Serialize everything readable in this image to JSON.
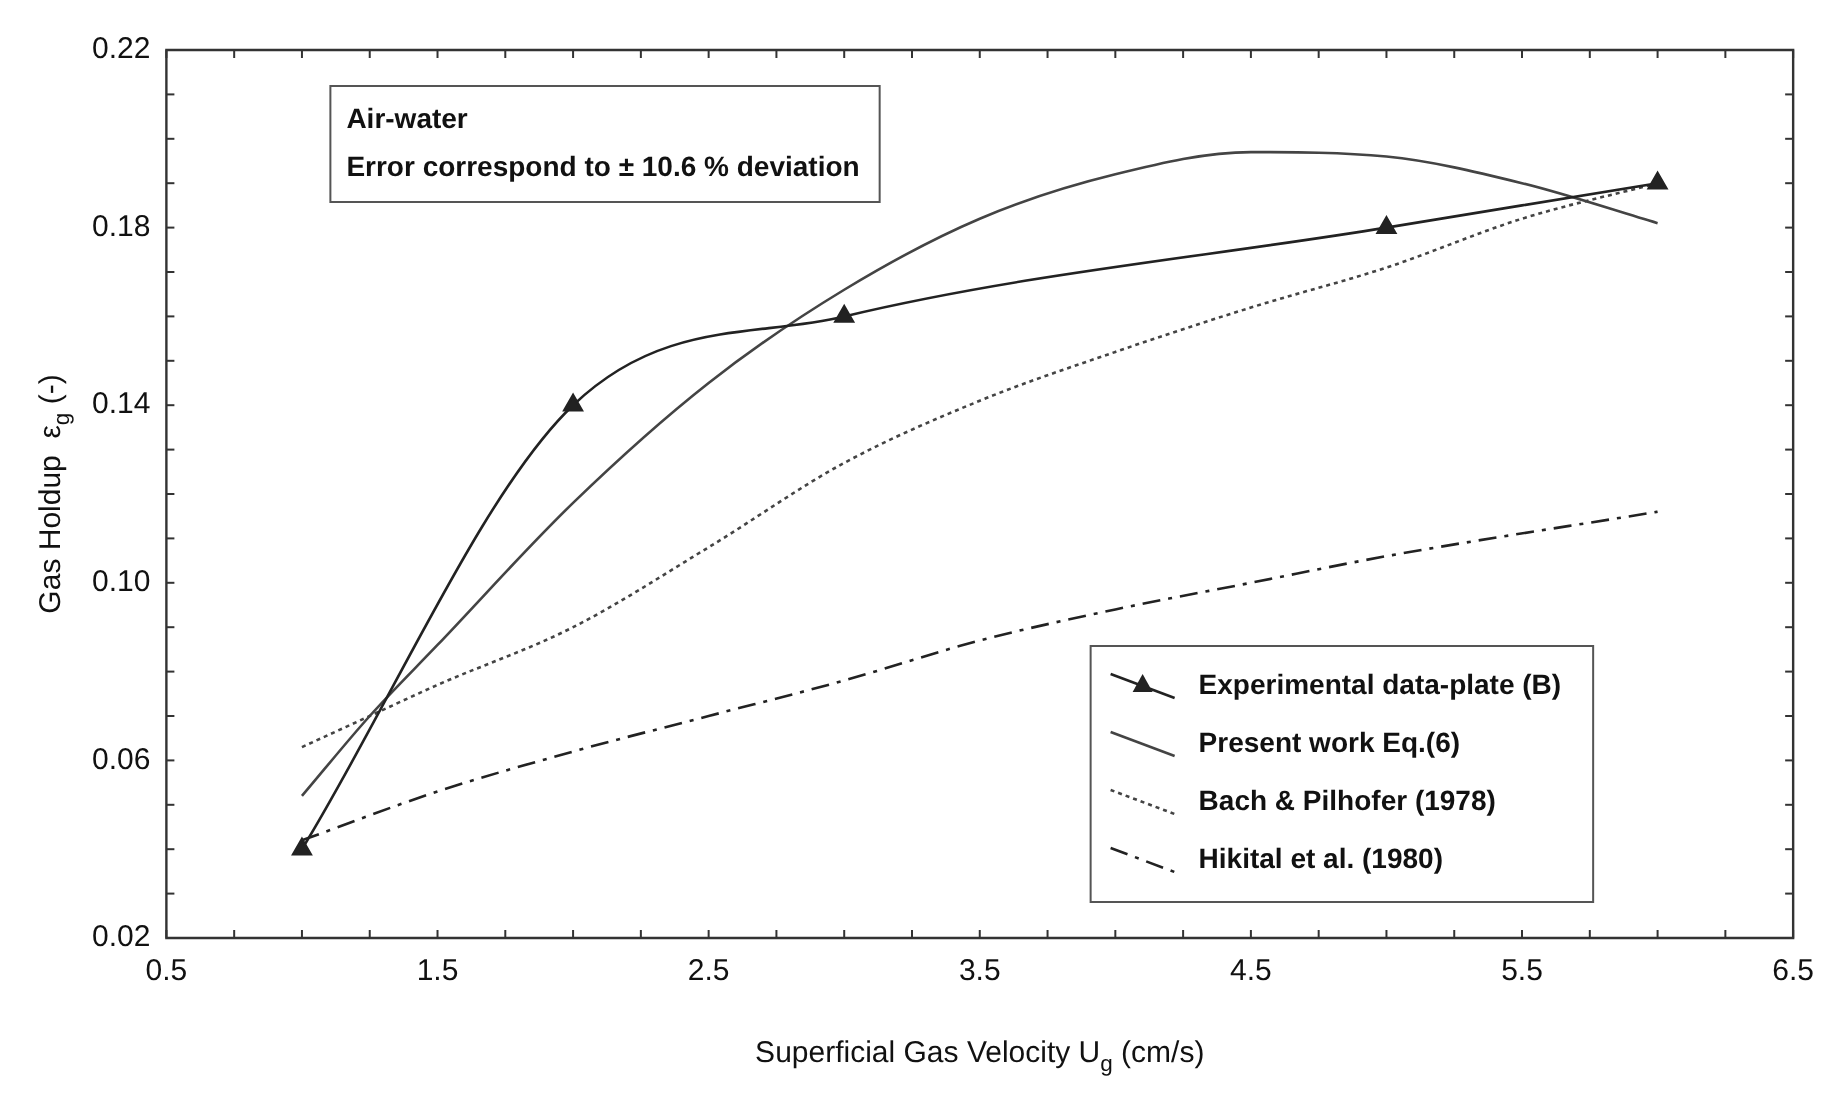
{
  "chart_data": {
    "type": "line",
    "xlabel": "Superficial Gas Velocity U$_{g}$ (cm/s)",
    "ylabel": "Gas Holdup  ε$_{g}$ (-)",
    "annotations": [
      "Air-water",
      "Error correspond to ± 10.6 % deviation"
    ],
    "xlim": [
      0.5,
      6.5
    ],
    "xticks": [
      0.5,
      {
        "value": 0.75,
        "label": null
      },
      {
        "value": 1,
        "label": null
      },
      {
        "value": 1.25,
        "label": null
      },
      1.5,
      {
        "value": 1.75,
        "label": null
      },
      {
        "value": 2,
        "label": null
      },
      {
        "value": 2.25,
        "label": null
      },
      2.5,
      {
        "value": 2.75,
        "label": null
      },
      {
        "value": 3,
        "label": null
      },
      {
        "value": 3.25,
        "label": null
      },
      3.5,
      {
        "value": 3.75,
        "label": null
      },
      {
        "value": 4,
        "label": null
      },
      {
        "value": 4.25,
        "label": null
      },
      4.5,
      {
        "value": 4.75,
        "label": null
      },
      {
        "value": 5,
        "label": null
      },
      {
        "value": 5.25,
        "label": null
      },
      5.5,
      {
        "value": 5.75,
        "label": null
      },
      {
        "value": 6,
        "label": null
      },
      {
        "value": 6.25,
        "label": null
      },
      6.5
    ],
    "ylim": [
      0.02,
      0.22
    ],
    "yticks": [
      {
        "value": 0.02,
        "label": "0.02"
      },
      {
        "value": 0.03,
        "label": null
      },
      {
        "value": 0.04,
        "label": null
      },
      {
        "value": 0.05,
        "label": null
      },
      {
        "value": 0.06,
        "label": "0.06"
      },
      {
        "value": 0.07,
        "label": null
      },
      {
        "value": 0.08,
        "label": null
      },
      {
        "value": 0.09,
        "label": null
      },
      {
        "value": 0.1,
        "label": "0.10"
      },
      {
        "value": 0.11,
        "label": null
      },
      {
        "value": 0.12,
        "label": null
      },
      {
        "value": 0.13,
        "label": null
      },
      {
        "value": 0.14,
        "label": "0.14"
      },
      {
        "value": 0.15,
        "label": null
      },
      {
        "value": 0.16,
        "label": null
      },
      {
        "value": 0.17,
        "label": null
      },
      {
        "value": 0.18,
        "label": "0.18"
      },
      {
        "value": 0.19,
        "label": null
      },
      {
        "value": 0.2,
        "label": null
      },
      {
        "value": 0.21,
        "label": null
      },
      {
        "value": 0.22,
        "label": "0.22"
      }
    ],
    "grid": false,
    "legend": "bottom right",
    "series": [
      {
        "name": "Experimental data-plate (B)",
        "color": "#222222",
        "marker": "triangle",
        "line_style": "solid",
        "x": [
          1,
          2,
          3,
          5,
          6
        ],
        "values": [
          0.04,
          0.14,
          0.16,
          0.18,
          0.19
        ]
      },
      {
        "name": "Present work Eq.(6)",
        "color": "#444444",
        "marker": "none",
        "line_style": "solid",
        "x": [
          1,
          1.25,
          1.5,
          2,
          2.5,
          3,
          3.5,
          4,
          4.5,
          5,
          5.5,
          6
        ],
        "values": [
          0.052,
          0.07,
          0.086,
          0.118,
          0.145,
          0.166,
          0.182,
          0.192,
          0.197,
          0.196,
          0.19,
          0.181
        ]
      },
      {
        "name": "Bach & Pilhofer (1978)",
        "color": "#444444",
        "marker": "none",
        "line_style": "dotted",
        "x": [
          1,
          1.25,
          1.5,
          2,
          2.5,
          3,
          3.5,
          4,
          4.5,
          5,
          5.5,
          6
        ],
        "values": [
          0.063,
          0.07,
          0.077,
          0.09,
          0.108,
          0.127,
          0.141,
          0.152,
          0.162,
          0.171,
          0.182,
          0.19
        ]
      },
      {
        "name": "Hikital et al. (1980)",
        "color": "#222222",
        "marker": "none",
        "line_style": "dashed",
        "x": [
          1,
          1.5,
          2,
          2.5,
          3,
          3.5,
          4,
          4.5,
          5,
          6
        ],
        "values": [
          0.042,
          0.053,
          0.062,
          0.07,
          0.078,
          0.087,
          0.094,
          0.1,
          0.106,
          0.116
        ]
      }
    ]
  }
}
